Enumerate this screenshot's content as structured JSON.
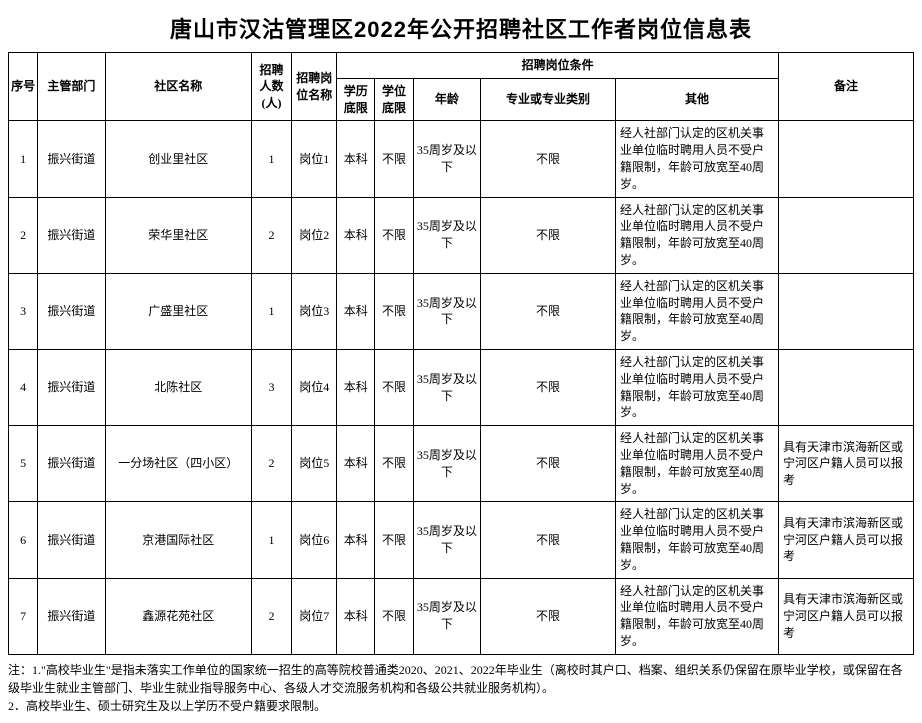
{
  "title": "唐山市汉沽管理区2022年公开招聘社区工作者岗位信息表",
  "headers": {
    "seq": "序号",
    "dept": "主管部门",
    "community": "社区名称",
    "count": "招聘人数(人)",
    "position": "招聘岗位名称",
    "conditions": "招聘岗位条件",
    "education": "学历底限",
    "degree": "学位底限",
    "age": "年龄",
    "major": "专业或专业类别",
    "other": "其他",
    "remark": "备注"
  },
  "other_text": "经人社部门认定的区机关事业单位临时聘用人员不受户籍限制，年龄可放宽至40周岁。",
  "remark_text": "具有天津市滨海新区或宁河区户籍人员可以报考",
  "rows": [
    {
      "seq": "1",
      "dept": "振兴街道",
      "community": "创业里社区",
      "count": "1",
      "position": "岗位1",
      "education": "本科",
      "degree": "不限",
      "age": "35周岁及以下",
      "major": "不限",
      "has_remark": false
    },
    {
      "seq": "2",
      "dept": "振兴街道",
      "community": "荣华里社区",
      "count": "2",
      "position": "岗位2",
      "education": "本科",
      "degree": "不限",
      "age": "35周岁及以下",
      "major": "不限",
      "has_remark": false
    },
    {
      "seq": "3",
      "dept": "振兴街道",
      "community": "广盛里社区",
      "count": "1",
      "position": "岗位3",
      "education": "本科",
      "degree": "不限",
      "age": "35周岁及以下",
      "major": "不限",
      "has_remark": false
    },
    {
      "seq": "4",
      "dept": "振兴街道",
      "community": "北陈社区",
      "count": "3",
      "position": "岗位4",
      "education": "本科",
      "degree": "不限",
      "age": "35周岁及以下",
      "major": "不限",
      "has_remark": false
    },
    {
      "seq": "5",
      "dept": "振兴街道",
      "community": "一分场社区（四小区）",
      "count": "2",
      "position": "岗位5",
      "education": "本科",
      "degree": "不限",
      "age": "35周岁及以下",
      "major": "不限",
      "has_remark": true
    },
    {
      "seq": "6",
      "dept": "振兴街道",
      "community": "京港国际社区",
      "count": "1",
      "position": "岗位6",
      "education": "本科",
      "degree": "不限",
      "age": "35周岁及以下",
      "major": "不限",
      "has_remark": true
    },
    {
      "seq": "7",
      "dept": "振兴街道",
      "community": "鑫源花苑社区",
      "count": "2",
      "position": "岗位7",
      "education": "本科",
      "degree": "不限",
      "age": "35周岁及以下",
      "major": "不限",
      "has_remark": true
    }
  ],
  "notes": [
    "注：1.\"高校毕业生\"是指未落实工作单位的国家统一招生的高等院校普通类2020、2021、2022年毕业生（离校时其户口、档案、组织关系仍保留在原毕业学校，或保留在各级毕业生就业主管部门、毕业生就业指导服务中心、各级人才交流服务机构和各级公共就业服务机构）。",
    "2．高校毕业生、硕士研究生及以上学历不受户籍要求限制。"
  ]
}
